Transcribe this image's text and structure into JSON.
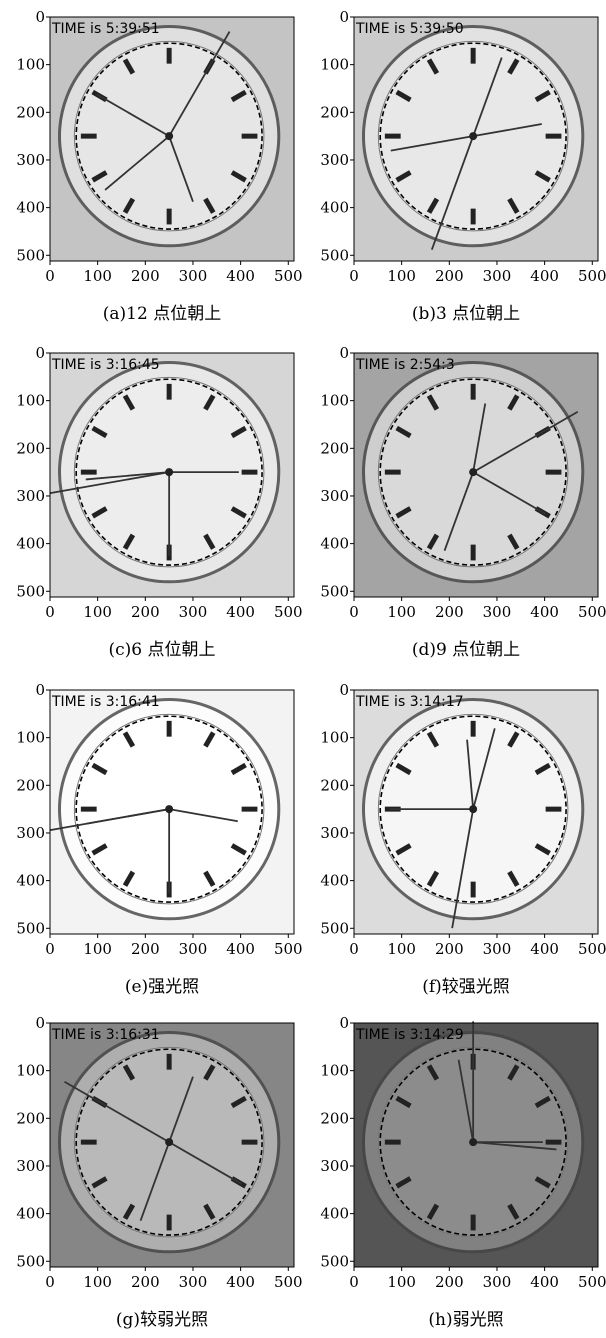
{
  "panels": [
    {
      "time": "TIME is 5:39:51",
      "caption": "(a)12 点位朝上"
    },
    {
      "time": "TIME is 5:39:50",
      "caption": "(b)3 点位朝上"
    },
    {
      "time": "TIME is 3:16:45",
      "caption": "(c)6 点位朝上"
    },
    {
      "time": "TIME is 2:54:3",
      "caption": "(d)9 点位朝上"
    },
    {
      "time": "TIME is 3:16:41",
      "caption": "(e)强光照"
    },
    {
      "time": "TIME is 3:14:17",
      "caption": "(f)较强光照"
    },
    {
      "time": "TIME is 3:16:31",
      "caption": "(g)较弱光照"
    },
    {
      "time": "TIME is 3:14:29",
      "caption": "(h)弱光照"
    }
  ],
  "axes": {
    "xticks": [
      0,
      100,
      200,
      300,
      400,
      500
    ],
    "yticks": [
      0,
      100,
      200,
      300,
      400,
      500
    ]
  }
}
